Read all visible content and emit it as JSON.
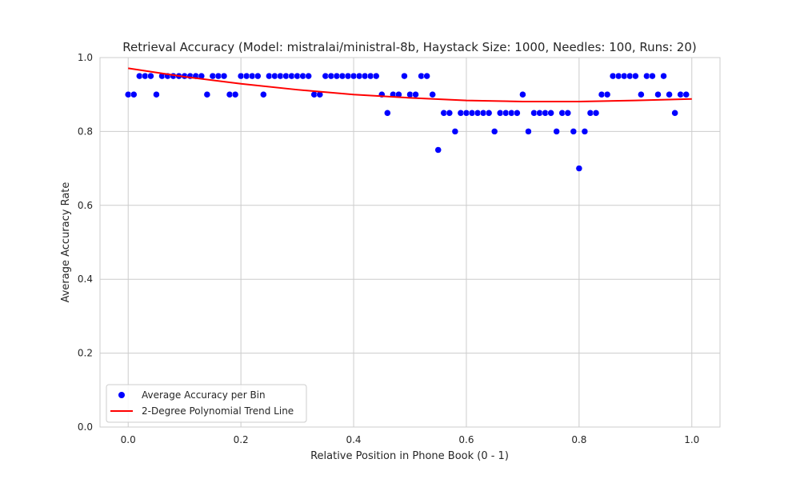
{
  "chart_data": {
    "type": "scatter",
    "title": "Retrieval Accuracy (Model: mistralai/ministral-8b, Haystack Size: 1000, Needles: 100, Runs: 20)",
    "xlabel": "Relative Position in Phone Book (0 - 1)",
    "ylabel": "Average Accuracy Rate",
    "xlim": [
      -0.05,
      1.05
    ],
    "ylim": [
      0.0,
      1.0
    ],
    "xticks": [
      0.0,
      0.2,
      0.4,
      0.6,
      0.8,
      1.0
    ],
    "xtick_labels": [
      "0.0",
      "0.2",
      "0.4",
      "0.6",
      "0.8",
      "1.0"
    ],
    "yticks": [
      0.0,
      0.2,
      0.4,
      0.6,
      0.8,
      1.0
    ],
    "ytick_labels": [
      "0.0",
      "0.2",
      "0.4",
      "0.6",
      "0.8",
      "1.0"
    ],
    "grid": true,
    "legend_position": "lower-left",
    "colors": {
      "points": "#0000ff",
      "trend": "#ff0000",
      "grid": "#cccccc",
      "frame": "#cccccc"
    },
    "series": [
      {
        "name": "Average Accuracy per Bin",
        "kind": "scatter",
        "x": [
          0.0,
          0.01,
          0.02,
          0.03,
          0.04,
          0.05,
          0.06,
          0.07,
          0.08,
          0.09,
          0.1,
          0.11,
          0.12,
          0.13,
          0.14,
          0.15,
          0.16,
          0.17,
          0.18,
          0.19,
          0.2,
          0.21,
          0.22,
          0.23,
          0.24,
          0.25,
          0.26,
          0.27,
          0.28,
          0.29,
          0.3,
          0.31,
          0.32,
          0.33,
          0.34,
          0.35,
          0.36,
          0.37,
          0.38,
          0.39,
          0.4,
          0.41,
          0.42,
          0.43,
          0.44,
          0.45,
          0.46,
          0.47,
          0.48,
          0.49,
          0.5,
          0.51,
          0.52,
          0.53,
          0.54,
          0.55,
          0.56,
          0.57,
          0.58,
          0.59,
          0.6,
          0.61,
          0.62,
          0.63,
          0.64,
          0.65,
          0.66,
          0.67,
          0.68,
          0.69,
          0.7,
          0.71,
          0.72,
          0.73,
          0.74,
          0.75,
          0.76,
          0.77,
          0.78,
          0.79,
          0.8,
          0.81,
          0.82,
          0.83,
          0.84,
          0.85,
          0.86,
          0.87,
          0.88,
          0.89,
          0.9,
          0.91,
          0.92,
          0.93,
          0.94,
          0.95,
          0.96,
          0.97,
          0.98,
          0.99
        ],
        "y": [
          0.9,
          0.9,
          0.95,
          0.95,
          0.95,
          0.9,
          0.95,
          0.95,
          0.95,
          0.95,
          0.95,
          0.95,
          0.95,
          0.95,
          0.9,
          0.95,
          0.95,
          0.95,
          0.9,
          0.9,
          0.95,
          0.95,
          0.95,
          0.95,
          0.9,
          0.95,
          0.95,
          0.95,
          0.95,
          0.95,
          0.95,
          0.95,
          0.95,
          0.9,
          0.9,
          0.95,
          0.95,
          0.95,
          0.95,
          0.95,
          0.95,
          0.95,
          0.95,
          0.95,
          0.95,
          0.9,
          0.85,
          0.9,
          0.9,
          0.95,
          0.9,
          0.9,
          0.95,
          0.95,
          0.9,
          0.75,
          0.85,
          0.85,
          0.8,
          0.85,
          0.85,
          0.85,
          0.85,
          0.85,
          0.85,
          0.8,
          0.85,
          0.85,
          0.85,
          0.85,
          0.9,
          0.8,
          0.85,
          0.85,
          0.85,
          0.85,
          0.8,
          0.85,
          0.85,
          0.8,
          0.7,
          0.8,
          0.85,
          0.85,
          0.9,
          0.9,
          0.95,
          0.95,
          0.95,
          0.95,
          0.95,
          0.9,
          0.95,
          0.95,
          0.9,
          0.95,
          0.9,
          0.85,
          0.9,
          0.9
        ]
      },
      {
        "name": "2-Degree Polynomial Trend Line",
        "kind": "line",
        "x": [
          0.0,
          0.1,
          0.2,
          0.3,
          0.4,
          0.5,
          0.6,
          0.7,
          0.8,
          0.9,
          1.0
        ],
        "y": [
          0.971,
          0.948,
          0.929,
          0.913,
          0.9,
          0.891,
          0.884,
          0.881,
          0.881,
          0.884,
          0.888
        ]
      }
    ]
  }
}
